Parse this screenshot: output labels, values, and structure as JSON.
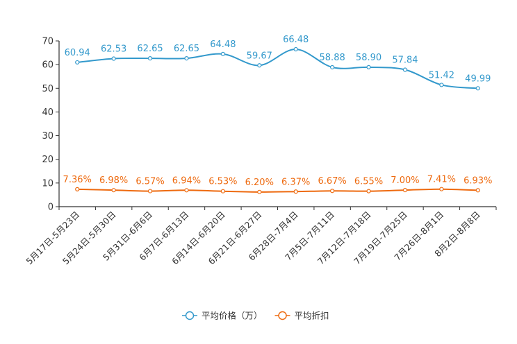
{
  "chart_data": {
    "type": "line",
    "title": "",
    "xlabel": "",
    "ylabel": "",
    "ylim": [
      0,
      70
    ],
    "yticks": [
      0,
      10,
      20,
      30,
      40,
      50,
      60,
      70
    ],
    "grid": false,
    "legend_position": "bottom-center",
    "categories": [
      "5月17日-5月23日",
      "5月24日-5月30日",
      "5月31日-6月6日",
      "6月7日-6月13日",
      "6月14日-6月20日",
      "6月21日-6月27日",
      "6月28日-7月4日",
      "7月5日-7月11日",
      "7月12日-7月18日",
      "7月19日-7月25日",
      "7月26日-8月1日",
      "8月2日-8月8日"
    ],
    "series": [
      {
        "name": "平均价格（万）",
        "color": "#3399cc",
        "values": [
          60.94,
          62.53,
          62.65,
          62.65,
          64.48,
          59.67,
          66.48,
          58.88,
          58.9,
          57.84,
          51.42,
          49.99
        ],
        "labels": [
          "60.94",
          "62.53",
          "62.65",
          "62.65",
          "64.48",
          "59.67",
          "66.48",
          "58.88",
          "58.90",
          "57.84",
          "51.42",
          "49.99"
        ]
      },
      {
        "name": "平均折扣",
        "color": "#ee6a0f",
        "values": [
          7.36,
          6.98,
          6.57,
          6.94,
          6.53,
          6.2,
          6.37,
          6.67,
          6.55,
          7.0,
          7.41,
          6.93
        ],
        "labels": [
          "7.36%",
          "6.98%",
          "6.57%",
          "6.94%",
          "6.53%",
          "6.20%",
          "6.37%",
          "6.67%",
          "6.55%",
          "7.00%",
          "7.41%",
          "6.93%"
        ]
      }
    ]
  }
}
